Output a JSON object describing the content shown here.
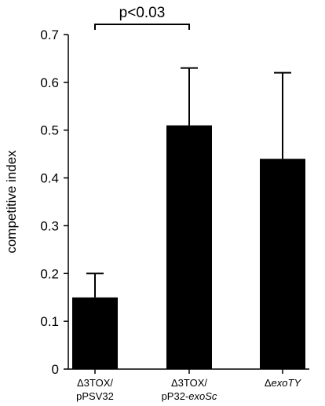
{
  "chart_data": {
    "type": "bar",
    "categories": [
      {
        "line1": "Δ3TOX/",
        "line2_plain": "pPSV32",
        "line2_italic": ""
      },
      {
        "line1": "Δ3TOX/",
        "line2_plain": "pP32-",
        "line2_italic": "exoSc"
      },
      {
        "line1_prefix": "Δ",
        "line1_italic": "exoTY"
      }
    ],
    "values": [
      0.15,
      0.51,
      0.44
    ],
    "error_upper": [
      0.2,
      0.63,
      0.62
    ],
    "ylabel": "competitive index",
    "xlabel": "",
    "title": "",
    "ylim": [
      0,
      0.7
    ],
    "yticks": [
      "0",
      "0.1",
      "0.2",
      "0.3",
      "0.4",
      "0.5",
      "0.6",
      "0.7"
    ],
    "grid": false,
    "bar_color": "#000000",
    "annotation": {
      "text": "p<0.03",
      "from_category": 0,
      "to_category": 1
    }
  }
}
